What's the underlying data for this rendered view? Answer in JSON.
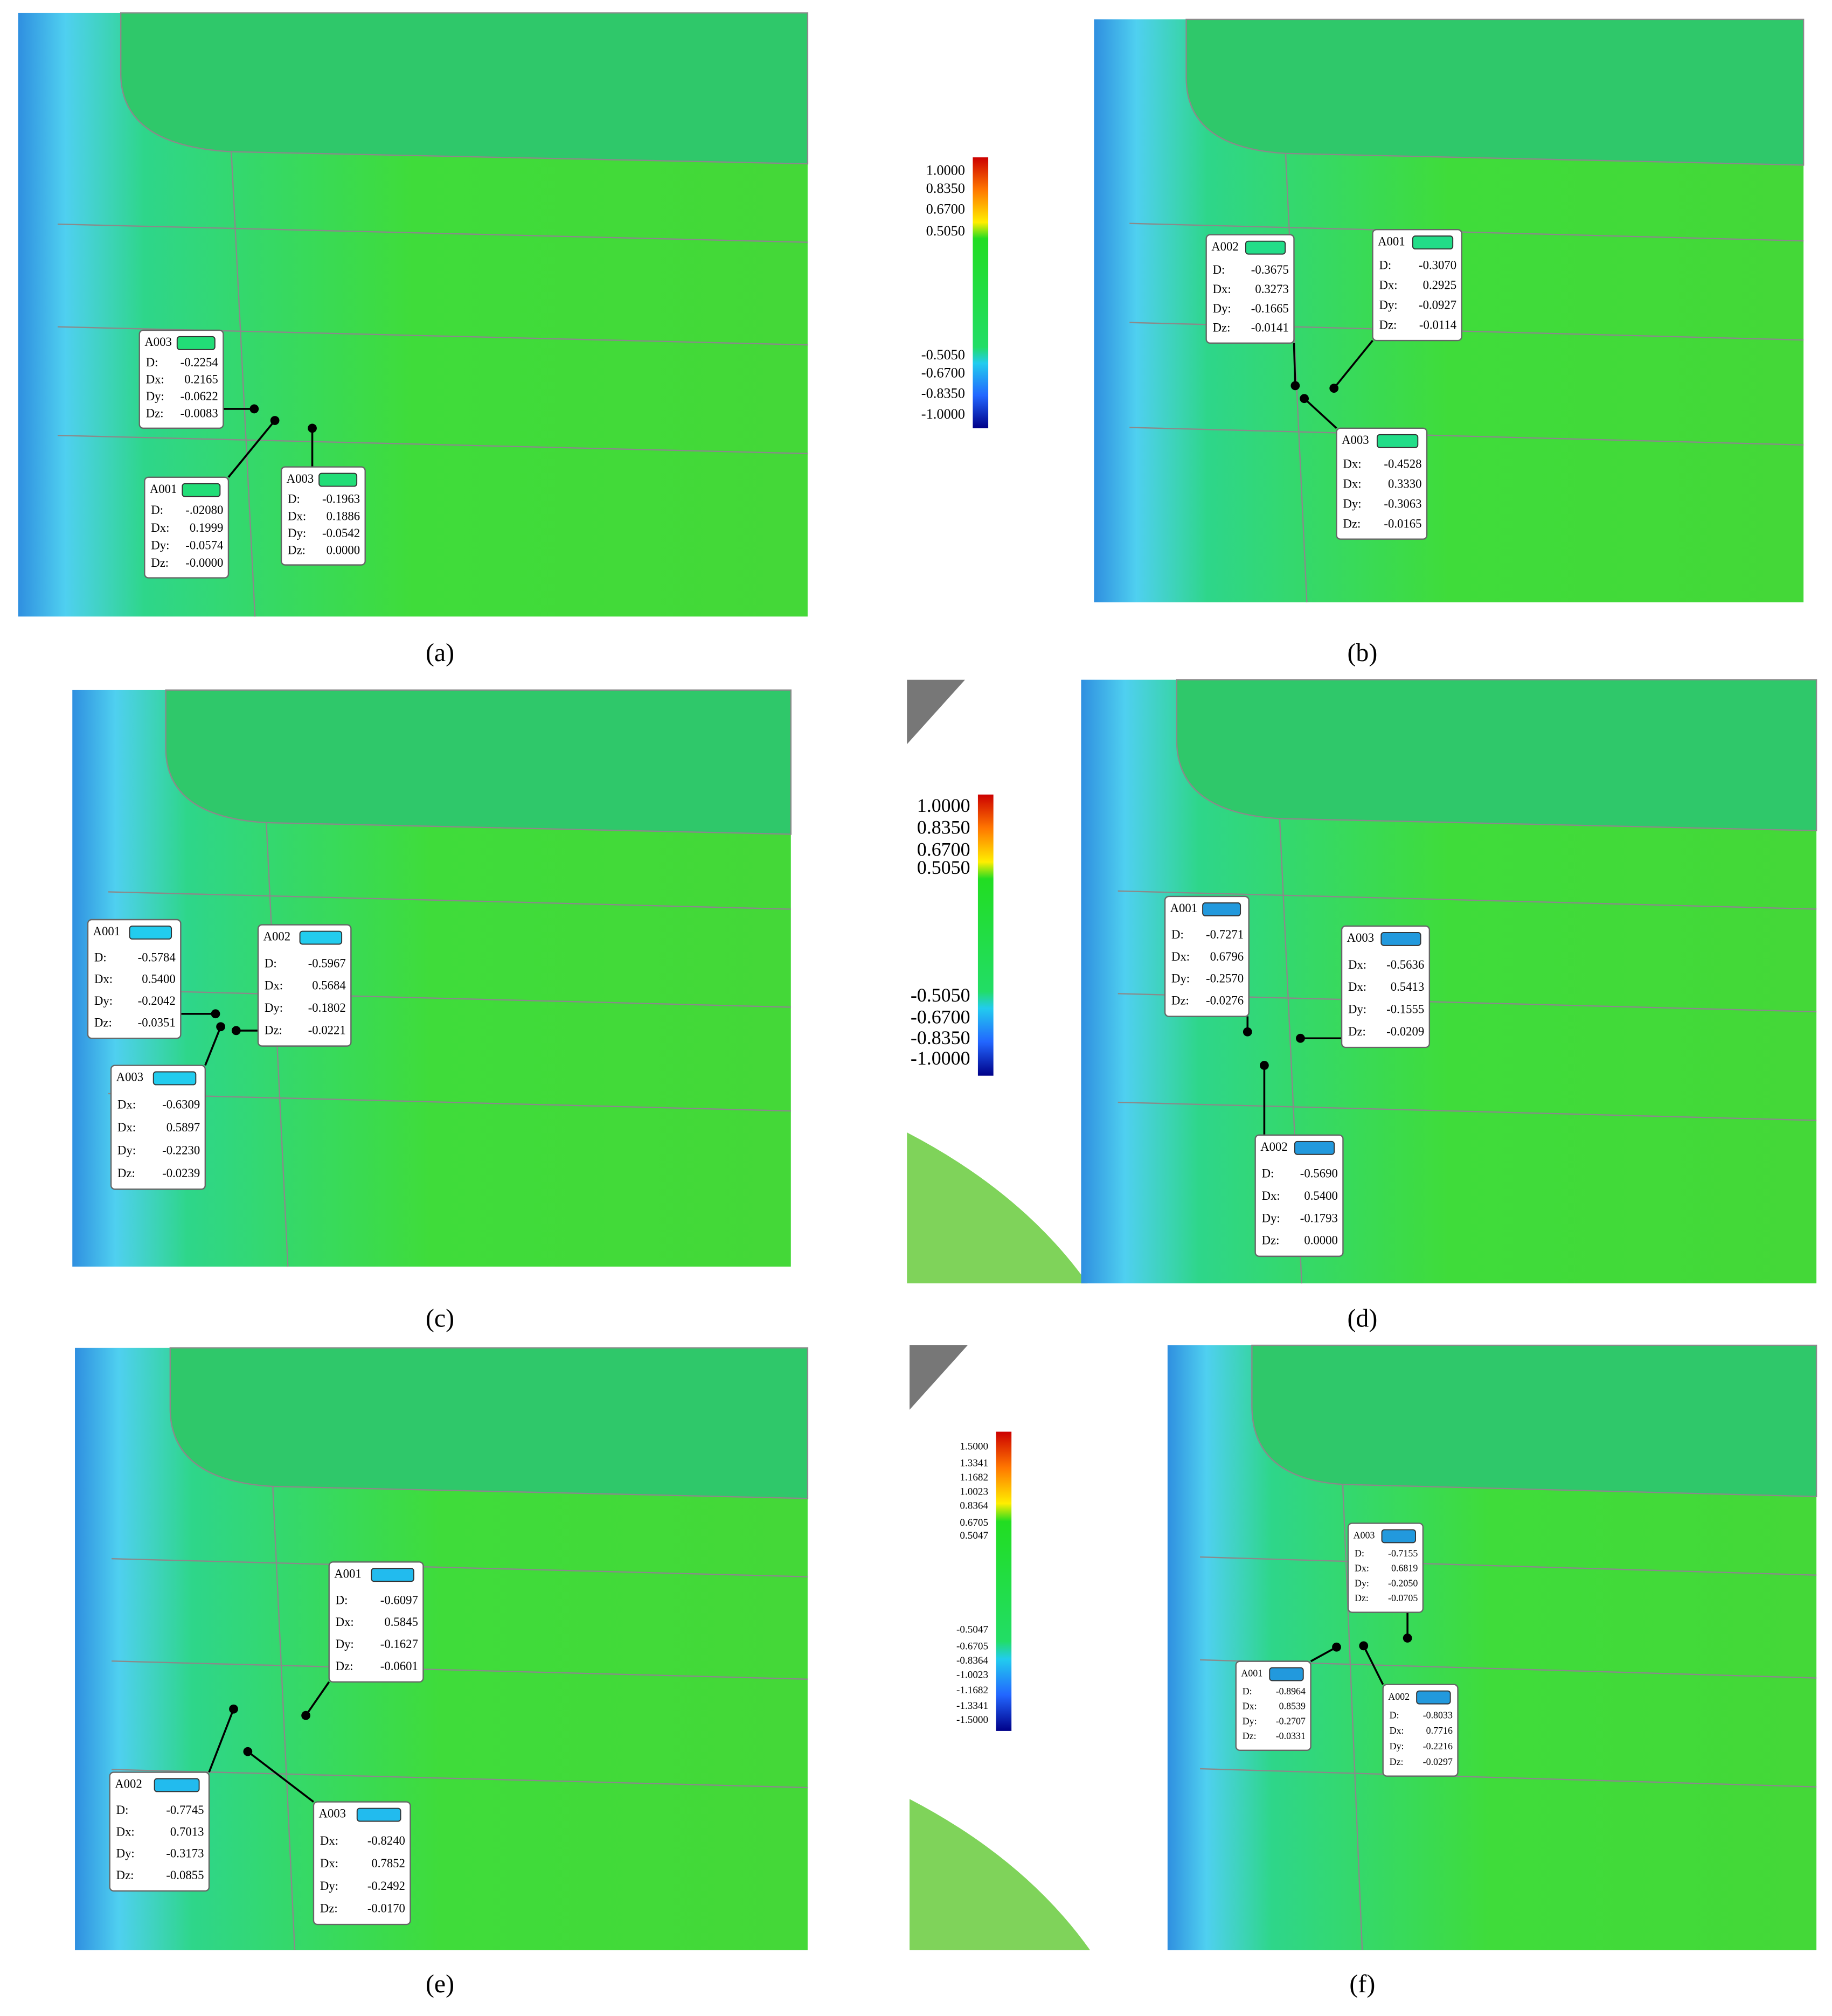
{
  "panels": [
    {
      "label": "(a)",
      "callouts": [
        {
          "id": "A003",
          "rows": [
            {
              "key": "D:",
              "value": "-0.2254"
            },
            {
              "key": "Dx:",
              "value": "0.2165"
            },
            {
              "key": "Dy:",
              "value": "-0.0622"
            },
            {
              "key": "Dz:",
              "value": "-0.0083"
            }
          ]
        },
        {
          "id": "A001",
          "rows": [
            {
              "key": "D:",
              "value": "-.02080"
            },
            {
              "key": "Dx:",
              "value": "0.1999"
            },
            {
              "key": "Dy:",
              "value": "-0.0574"
            },
            {
              "key": "Dz:",
              "value": "-0.0000"
            }
          ]
        },
        {
          "id": "A003",
          "rows": [
            {
              "key": "D:",
              "value": "-0.1963"
            },
            {
              "key": "Dx:",
              "value": "0.1886"
            },
            {
              "key": "Dy:",
              "value": "-0.0542"
            },
            {
              "key": "Dz:",
              "value": "0.0000"
            }
          ]
        }
      ]
    },
    {
      "label": "(b)",
      "colorbar": [
        "1.0000",
        "0.8350",
        "0.6700",
        "0.5050",
        "-0.5050",
        "-0.6700",
        "-0.8350",
        "-1.0000"
      ],
      "callouts": [
        {
          "id": "A002",
          "rows": [
            {
              "key": "D:",
              "value": "-0.3675"
            },
            {
              "key": "Dx:",
              "value": "0.3273"
            },
            {
              "key": "Dy:",
              "value": "-0.1665"
            },
            {
              "key": "Dz:",
              "value": "-0.0141"
            }
          ]
        },
        {
          "id": "A001",
          "rows": [
            {
              "key": "D:",
              "value": "-0.3070"
            },
            {
              "key": "Dx:",
              "value": "0.2925"
            },
            {
              "key": "Dy:",
              "value": "-0.0927"
            },
            {
              "key": "Dz:",
              "value": "-0.0114"
            }
          ]
        },
        {
          "id": "A003",
          "rows": [
            {
              "key": "Dx:",
              "value": "-0.4528"
            },
            {
              "key": "Dx:",
              "value": "0.3330"
            },
            {
              "key": "Dy:",
              "value": "-0.3063"
            },
            {
              "key": "Dz:",
              "value": "-0.0165"
            }
          ]
        }
      ]
    },
    {
      "label": "(c)",
      "callouts": [
        {
          "id": "A001",
          "rows": [
            {
              "key": "D:",
              "value": "-0.5784"
            },
            {
              "key": "Dx:",
              "value": "0.5400"
            },
            {
              "key": "Dy:",
              "value": "-0.2042"
            },
            {
              "key": "Dz:",
              "value": "-0.0351"
            }
          ]
        },
        {
          "id": "A002",
          "rows": [
            {
              "key": "D:",
              "value": "-0.5967"
            },
            {
              "key": "Dx:",
              "value": "0.5684"
            },
            {
              "key": "Dy:",
              "value": "-0.1802"
            },
            {
              "key": "Dz:",
              "value": "-0.0221"
            }
          ]
        },
        {
          "id": "A003",
          "rows": [
            {
              "key": "Dx:",
              "value": "-0.6309"
            },
            {
              "key": "Dx:",
              "value": "0.5897"
            },
            {
              "key": "Dy:",
              "value": "-0.2230"
            },
            {
              "key": "Dz:",
              "value": "-0.0239"
            }
          ]
        }
      ]
    },
    {
      "label": "(d)",
      "colorbar": [
        "1.0000",
        "0.8350",
        "0.6700",
        "0.5050",
        "-0.5050",
        "-0.6700",
        "-0.8350",
        "-1.0000"
      ],
      "callouts": [
        {
          "id": "A001",
          "rows": [
            {
              "key": "D:",
              "value": "-0.7271"
            },
            {
              "key": "Dx:",
              "value": "0.6796"
            },
            {
              "key": "Dy:",
              "value": "-0.2570"
            },
            {
              "key": "Dz:",
              "value": "-0.0276"
            }
          ]
        },
        {
          "id": "A003",
          "rows": [
            {
              "key": "Dx:",
              "value": "-0.5636"
            },
            {
              "key": "Dx:",
              "value": "0.5413"
            },
            {
              "key": "Dy:",
              "value": "-0.1555"
            },
            {
              "key": "Dz:",
              "value": "-0.0209"
            }
          ]
        },
        {
          "id": "A002",
          "rows": [
            {
              "key": "D:",
              "value": "-0.5690"
            },
            {
              "key": "Dx:",
              "value": "0.5400"
            },
            {
              "key": "Dy:",
              "value": "-0.1793"
            },
            {
              "key": "Dz:",
              "value": "0.0000"
            }
          ]
        }
      ]
    },
    {
      "label": "(e)",
      "callouts": [
        {
          "id": "A001",
          "rows": [
            {
              "key": "D:",
              "value": "-0.6097"
            },
            {
              "key": "Dx:",
              "value": "0.5845"
            },
            {
              "key": "Dy:",
              "value": "-0.1627"
            },
            {
              "key": "Dz:",
              "value": "-0.0601"
            }
          ]
        },
        {
          "id": "A002",
          "rows": [
            {
              "key": "D:",
              "value": "-0.7745"
            },
            {
              "key": "Dx:",
              "value": "0.7013"
            },
            {
              "key": "Dy:",
              "value": "-0.3173"
            },
            {
              "key": "Dz:",
              "value": "-0.0855"
            }
          ]
        },
        {
          "id": "A003",
          "rows": [
            {
              "key": "Dx:",
              "value": "-0.8240"
            },
            {
              "key": "Dx:",
              "value": "0.7852"
            },
            {
              "key": "Dy:",
              "value": "-0.2492"
            },
            {
              "key": "Dz:",
              "value": "-0.0170"
            }
          ]
        }
      ]
    },
    {
      "label": "(f)",
      "colorbar": [
        "1.5000",
        "1.3341",
        "1.1682",
        "1.0023",
        "0.8364",
        "0.6705",
        "0.5047",
        "-0.5047",
        "-0.6705",
        "-0.8364",
        "-1.0023",
        "-1.1682",
        "-1.3341",
        "-1.5000"
      ],
      "callouts": [
        {
          "id": "A003",
          "rows": [
            {
              "key": "D:",
              "value": "-0.7155"
            },
            {
              "key": "Dx:",
              "value": "0.6819"
            },
            {
              "key": "Dy:",
              "value": "-0.2050"
            },
            {
              "key": "Dz:",
              "value": "-0.0705"
            }
          ]
        },
        {
          "id": "A001",
          "rows": [
            {
              "key": "D:",
              "value": "-0.8964"
            },
            {
              "key": "Dx:",
              "value": "0.8539"
            },
            {
              "key": "Dy:",
              "value": "-0.2707"
            },
            {
              "key": "Dz:",
              "value": "-0.0331"
            }
          ]
        },
        {
          "id": "A002",
          "rows": [
            {
              "key": "D:",
              "value": "-0.8033"
            },
            {
              "key": "Dx:",
              "value": "0.7716"
            },
            {
              "key": "Dy:",
              "value": "-0.2216"
            },
            {
              "key": "Dz:",
              "value": "-0.0297"
            }
          ]
        }
      ]
    }
  ]
}
